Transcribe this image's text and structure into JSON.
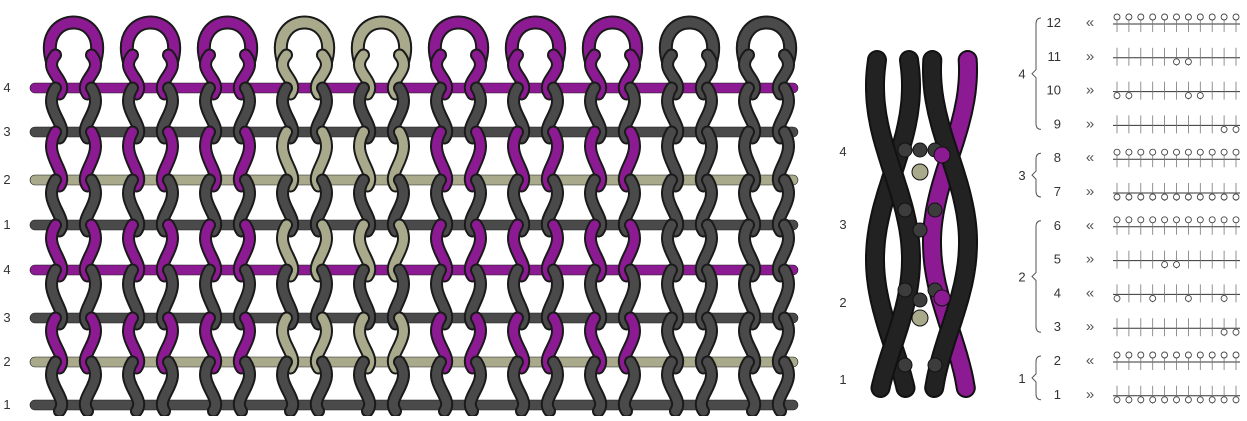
{
  "colors": {
    "purple": "#8c1a92",
    "dark": "#4a4a4a",
    "tan": "#a9a98c",
    "black": "#222222",
    "line": "#333333"
  },
  "fabric": {
    "column_colors": [
      "purple",
      "purple",
      "purple",
      "tan",
      "tan",
      "purple",
      "purple",
      "purple",
      "dark",
      "dark"
    ],
    "row_labels": [
      "4",
      "3",
      "2",
      "1",
      "4",
      "3",
      "2",
      "1"
    ]
  },
  "cross_section": {
    "labels": [
      "4",
      "3",
      "2",
      "1"
    ]
  },
  "notation": {
    "rows": [
      {
        "num": "12",
        "arrow": "«"
      },
      {
        "num": "11",
        "arrow": "»"
      },
      {
        "num": "10",
        "arrow": "»"
      },
      {
        "num": "9",
        "arrow": "»"
      },
      {
        "num": "8",
        "arrow": "«"
      },
      {
        "num": "7",
        "arrow": "»"
      },
      {
        "num": "6",
        "arrow": "«"
      },
      {
        "num": "5",
        "arrow": "»"
      },
      {
        "num": "4",
        "arrow": "«"
      },
      {
        "num": "3",
        "arrow": "»"
      },
      {
        "num": "2",
        "arrow": "«"
      },
      {
        "num": "1",
        "arrow": "»"
      }
    ],
    "groups": [
      {
        "label": "4"
      },
      {
        "label": "3"
      },
      {
        "label": "2"
      },
      {
        "label": "1"
      }
    ]
  }
}
